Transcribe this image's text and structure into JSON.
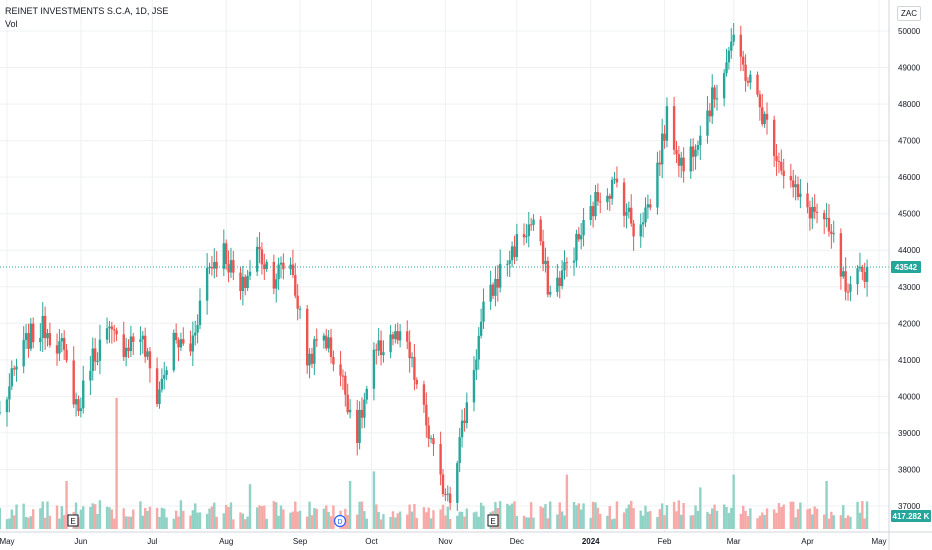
{
  "header": {
    "title": "REINET INVESTMENTS S.C.A, 1D, JSE",
    "volume_label": "Vol",
    "currency": "ZAC"
  },
  "colors": {
    "up": "#26a69a",
    "down": "#ef5350",
    "up_volume": "#8fd2c6",
    "down_volume": "#f7a9a7",
    "grid": "#eef0f3",
    "last_price_line": "#26a69a"
  },
  "chart_data": {
    "type": "candlestick",
    "y_ticks": [
      "50000",
      "49000",
      "48000",
      "47000",
      "46000",
      "45000",
      "44000",
      "43000",
      "42000",
      "41000",
      "40000",
      "39000",
      "38000",
      "37000"
    ],
    "x_ticks": [
      "May",
      "Jun",
      "Jul",
      "Aug",
      "Sep",
      "Oct",
      "Nov",
      "Dec",
      "2024",
      "Feb",
      "Mar",
      "Apr",
      "May"
    ],
    "ylim": [
      36700,
      50300
    ],
    "last_price": 43542,
    "last_price_label": "43542",
    "volume_label": "417.282 K",
    "events": [
      {
        "label": "E",
        "month": "Jun"
      },
      {
        "label": "D",
        "month": "Sep"
      },
      {
        "label": "E",
        "month": "Nov"
      }
    ],
    "anchors": [
      [
        "2023-04-28",
        39500
      ],
      [
        "2023-05-05",
        40800
      ],
      [
        "2023-05-10",
        41600
      ],
      [
        "2023-05-17",
        41900
      ],
      [
        "2023-05-24",
        41300
      ],
      [
        "2023-05-31",
        39600
      ],
      [
        "2023-06-05",
        41000
      ],
      [
        "2023-06-12",
        41700
      ],
      [
        "2023-06-19",
        41400
      ],
      [
        "2023-06-26",
        41700
      ],
      [
        "2023-07-03",
        40000
      ],
      [
        "2023-07-10",
        41500
      ],
      [
        "2023-07-17",
        41300
      ],
      [
        "2023-07-24",
        43500
      ],
      [
        "2023-07-31",
        44000
      ],
      [
        "2023-08-07",
        42800
      ],
      [
        "2023-08-14",
        44000
      ],
      [
        "2023-08-21",
        43300
      ],
      [
        "2023-08-28",
        43700
      ],
      [
        "2023-09-04",
        41000
      ],
      [
        "2023-09-11",
        41700
      ],
      [
        "2023-09-18",
        40600
      ],
      [
        "2023-09-25",
        39000
      ],
      [
        "2023-10-02",
        41000
      ],
      [
        "2023-10-09",
        41700
      ],
      [
        "2023-10-16",
        41300
      ],
      [
        "2023-10-23",
        39500
      ],
      [
        "2023-10-30",
        37600
      ],
      [
        "2023-11-03",
        37400
      ],
      [
        "2023-11-10",
        39800
      ],
      [
        "2023-11-17",
        42300
      ],
      [
        "2023-11-24",
        43400
      ],
      [
        "2023-12-01",
        44200
      ],
      [
        "2023-12-08",
        44800
      ],
      [
        "2023-12-15",
        42800
      ],
      [
        "2023-12-22",
        43600
      ],
      [
        "2024-01-05",
        45600
      ],
      [
        "2024-01-12",
        45800
      ],
      [
        "2024-01-19",
        44600
      ],
      [
        "2024-01-26",
        45300
      ],
      [
        "2024-02-02",
        47600
      ],
      [
        "2024-02-09",
        46200
      ],
      [
        "2024-02-16",
        47400
      ],
      [
        "2024-02-23",
        48400
      ],
      [
        "2024-02-29",
        49700
      ],
      [
        "2024-03-08",
        48600
      ],
      [
        "2024-03-15",
        47400
      ],
      [
        "2024-03-22",
        46200
      ],
      [
        "2024-03-29",
        45300
      ],
      [
        "2024-04-05",
        45000
      ],
      [
        "2024-04-12",
        44200
      ],
      [
        "2024-04-18",
        42600
      ],
      [
        "2024-04-22",
        43200
      ],
      [
        "2024-04-26",
        43542
      ]
    ],
    "volume_spikes": [
      [
        "2023-05-26",
        0.3
      ],
      [
        "2023-06-16",
        0.82
      ],
      [
        "2023-08-11",
        0.28
      ],
      [
        "2023-09-22",
        0.3
      ],
      [
        "2023-10-02",
        0.36
      ],
      [
        "2023-12-22",
        0.34
      ],
      [
        "2024-02-16",
        0.26
      ],
      [
        "2024-03-01",
        0.34
      ],
      [
        "2024-04-09",
        0.3
      ]
    ]
  }
}
